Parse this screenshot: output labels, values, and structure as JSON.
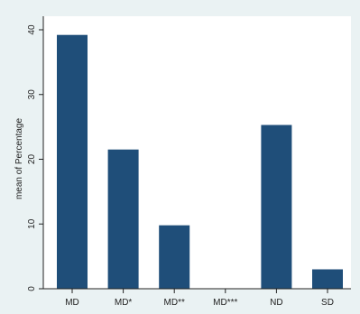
{
  "chart_data": {
    "type": "bar",
    "title": "",
    "xlabel": "",
    "ylabel": "mean of Percentage",
    "categories": [
      "MD",
      "MD*",
      "MD**",
      "MD***",
      "ND",
      "SD"
    ],
    "values": [
      39.2,
      21.5,
      9.8,
      0,
      25.3,
      3.0
    ],
    "ylim": [
      0,
      40
    ],
    "yticks": [
      0,
      10,
      20,
      30,
      40
    ],
    "grid": false,
    "legend": "none",
    "colors": {
      "bar": "#1f4e79",
      "plot_background": "#ffffff",
      "outer_background": "#eaf2f3",
      "axis": "#222222"
    }
  }
}
